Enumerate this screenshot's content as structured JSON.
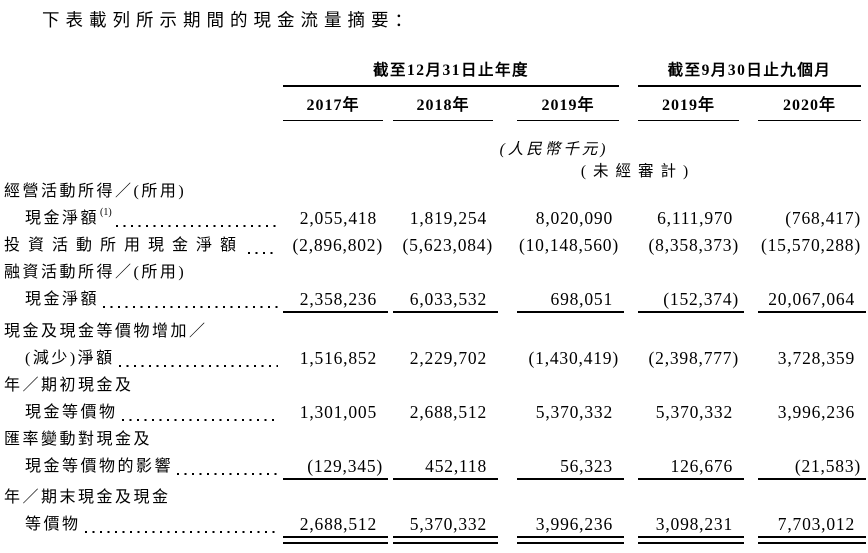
{
  "title": "下表載列所示期間的現金流量摘要：",
  "table": {
    "col_groups": [
      {
        "label": "截至12月31日止年度",
        "span": [
          0,
          2
        ]
      },
      {
        "label": "截至9月30日止九個月",
        "span": [
          3,
          4
        ]
      }
    ],
    "columns": [
      "2017年",
      "2018年",
      "2019年",
      "2019年",
      "2020年"
    ],
    "unit_note": "(人民幣千元)",
    "unaudited_note": "(未經審計)",
    "rows": [
      {
        "label": "經營活動所得／(所用)",
        "indent": 0,
        "values": null,
        "rule": "none"
      },
      {
        "label": "現金淨額",
        "sup": "(1)",
        "indent": 1,
        "values": [
          "2,055,418",
          "1,819,254",
          "8,020,090",
          "6,111,970",
          "(768,417)"
        ],
        "rule": "none"
      },
      {
        "label": "投資活動所用現金淨額",
        "indent": 0,
        "values": [
          "(2,896,802)",
          "(5,623,084)",
          "(10,148,560)",
          "(8,358,373)",
          "(15,570,288)"
        ],
        "rule": "none"
      },
      {
        "label": "融資活動所得／(所用)",
        "indent": 0,
        "values": null,
        "rule": "none"
      },
      {
        "label": "現金淨額",
        "indent": 1,
        "values": [
          "2,358,236",
          "6,033,532",
          "698,051",
          "(152,374)",
          "20,067,064"
        ],
        "rule": "single"
      },
      {
        "label": "現金及現金等價物增加／",
        "indent": 0,
        "values": null,
        "rule": "none"
      },
      {
        "label": "(減少)淨額",
        "indent": 1,
        "values": [
          "1,516,852",
          "2,229,702",
          "(1,430,419)",
          "(2,398,777)",
          "3,728,359"
        ],
        "rule": "none"
      },
      {
        "label": "年／期初現金及",
        "indent": 0,
        "values": null,
        "rule": "none"
      },
      {
        "label": "現金等價物",
        "indent": 1,
        "values": [
          "1,301,005",
          "2,688,512",
          "5,370,332",
          "5,370,332",
          "3,996,236"
        ],
        "rule": "none"
      },
      {
        "label": "匯率變動對現金及",
        "indent": 0,
        "values": null,
        "rule": "none"
      },
      {
        "label": "現金等價物的影響",
        "indent": 1,
        "values": [
          "(129,345)",
          "452,118",
          "56,323",
          "126,676",
          "(21,583)"
        ],
        "rule": "single"
      },
      {
        "label": "年／期末現金及現金",
        "indent": 0,
        "values": null,
        "rule": "none"
      },
      {
        "label": "等價物",
        "indent": 1,
        "values": [
          "2,688,512",
          "5,370,332",
          "3,996,236",
          "3,098,231",
          "7,703,012"
        ],
        "rule": "double"
      }
    ]
  }
}
